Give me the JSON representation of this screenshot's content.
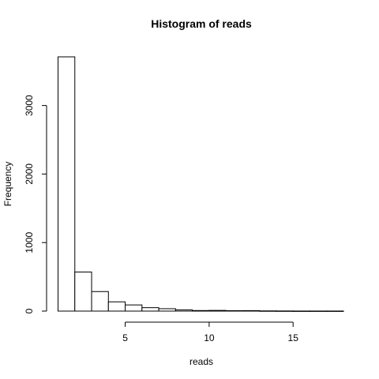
{
  "chart_data": {
    "type": "bar",
    "title": "Histogram of reads",
    "xlabel": "reads",
    "ylabel": "Frequency",
    "bins": [
      {
        "start": 1,
        "end": 2,
        "count": 3710
      },
      {
        "start": 2,
        "end": 3,
        "count": 570
      },
      {
        "start": 3,
        "end": 4,
        "count": 285
      },
      {
        "start": 4,
        "end": 5,
        "count": 135
      },
      {
        "start": 5,
        "end": 6,
        "count": 90
      },
      {
        "start": 6,
        "end": 7,
        "count": 50
      },
      {
        "start": 7,
        "end": 8,
        "count": 35
      },
      {
        "start": 8,
        "end": 9,
        "count": 18
      },
      {
        "start": 9,
        "end": 10,
        "count": 8
      },
      {
        "start": 10,
        "end": 11,
        "count": 10
      },
      {
        "start": 11,
        "end": 12,
        "count": 6
      },
      {
        "start": 12,
        "end": 13,
        "count": 7
      },
      {
        "start": 13,
        "end": 14,
        "count": 3
      },
      {
        "start": 14,
        "end": 15,
        "count": 2
      },
      {
        "start": 15,
        "end": 16,
        "count": 1
      },
      {
        "start": 16,
        "end": 17,
        "count": 1
      },
      {
        "start": 17,
        "end": 18,
        "count": 1
      }
    ],
    "xlim": [
      1,
      18
    ],
    "ylim": [
      0,
      3710
    ],
    "xticks": [
      5,
      10,
      15
    ],
    "yticks": [
      0,
      1000,
      2000,
      3000
    ],
    "grid": false
  }
}
